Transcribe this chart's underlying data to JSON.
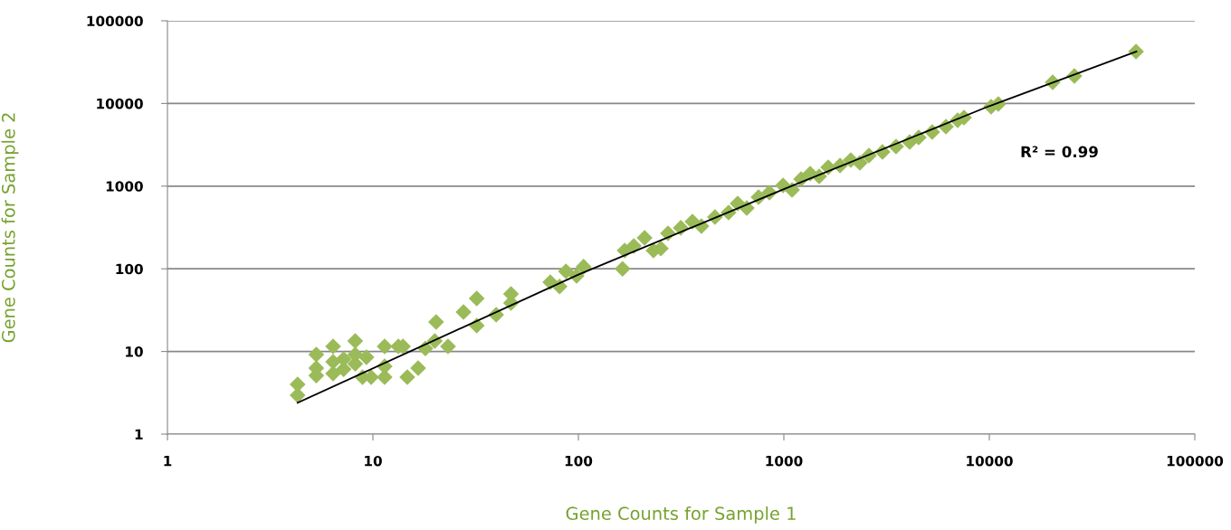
{
  "chart_data": {
    "type": "scatter",
    "xlabel": "Gene Counts for Sample 1",
    "ylabel": "Gene Counts for Sample 2",
    "log": "xy",
    "xlim": [
      1,
      100000
    ],
    "ylim": [
      1,
      100000
    ],
    "xticks": [
      1,
      10,
      100,
      1000,
      10000,
      100000
    ],
    "yticks": [
      1,
      10,
      100,
      1000,
      10000,
      100000
    ],
    "grid": "y",
    "annotations": [
      "R² = 0.99"
    ],
    "series": [
      {
        "marker": "diamond",
        "color": "#9bbb59",
        "x": [
          4.3,
          4.3,
          5.3,
          5.3,
          5.3,
          6.4,
          6.4,
          6.4,
          7.2,
          7.2,
          8.2,
          8.2,
          8.2,
          8.9,
          9.3,
          9.8,
          11.4,
          11.4,
          11.4,
          13.3,
          14,
          14.7,
          16.6,
          18,
          20,
          20.3,
          23.2,
          27.6,
          32,
          32,
          39.8,
          47,
          47,
          73,
          81,
          87,
          98,
          106,
          164,
          168,
          186,
          210,
          232,
          252,
          273,
          315,
          359,
          397,
          462,
          538,
          596,
          660,
          753,
          850,
          991,
          1096,
          1213,
          1343,
          1485,
          1644,
          1877,
          2117,
          2344,
          2594,
          3020,
          3516,
          4095,
          4531,
          5272,
          6150,
          7010,
          7530,
          10200,
          11060,
          20340,
          25940,
          51760
        ],
        "values": [
          4.0,
          2.95,
          9.2,
          6.3,
          5.1,
          11.5,
          7.5,
          5.4,
          8.1,
          6.1,
          13.4,
          9.2,
          7.1,
          4.9,
          8.5,
          4.9,
          11.5,
          6.6,
          4.9,
          11.5,
          11.5,
          4.9,
          6.3,
          10.9,
          13.4,
          22.7,
          11.5,
          30,
          20.6,
          43.8,
          27.8,
          38.6,
          49.6,
          69,
          61,
          93,
          82,
          106,
          100,
          166,
          189,
          237,
          166,
          176,
          268,
          313,
          372,
          328,
          422,
          480,
          617,
          544,
          736,
          834,
          1020,
          900,
          1217,
          1416,
          1312,
          1690,
          1775,
          2064,
          1914,
          2344,
          2594,
          3013,
          3420,
          3880,
          4510,
          5250,
          6266,
          6750,
          9140,
          9840,
          18030,
          21520,
          42460
        ]
      },
      {
        "type": "line",
        "marker": "none",
        "line_style": "solid",
        "color": "#000000",
        "x": [
          4.3,
          100,
          1000,
          10000,
          52000
        ],
        "values": [
          2.4,
          85,
          920,
          9300,
          42500
        ]
      }
    ]
  }
}
